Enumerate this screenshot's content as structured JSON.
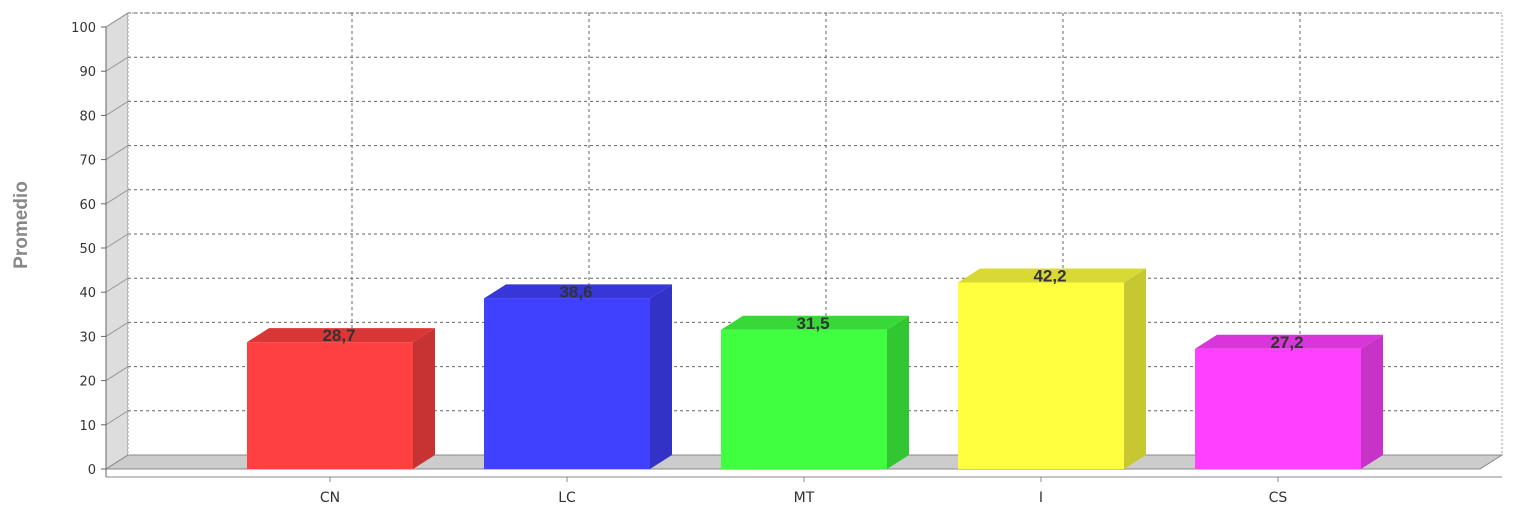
{
  "chart_data": {
    "type": "bar",
    "title": "",
    "xlabel": "",
    "ylabel": "Promedio",
    "categories": [
      "CN",
      "LC",
      "MT",
      "I",
      "CS"
    ],
    "values": [
      28.7,
      38.6,
      31.5,
      42.2,
      27.2
    ],
    "value_labels": [
      "28,7",
      "38,6",
      "31,5",
      "42,2",
      "27,2"
    ],
    "colors": [
      "#ff4040",
      "#4040ff",
      "#40ff40",
      "#ffff40",
      "#ff40ff"
    ],
    "ylim": [
      0,
      100
    ],
    "yticks": [
      "0",
      "10",
      "20",
      "30",
      "40",
      "50",
      "60",
      "70",
      "80",
      "90",
      "100"
    ],
    "grid": true,
    "style": "3d"
  }
}
